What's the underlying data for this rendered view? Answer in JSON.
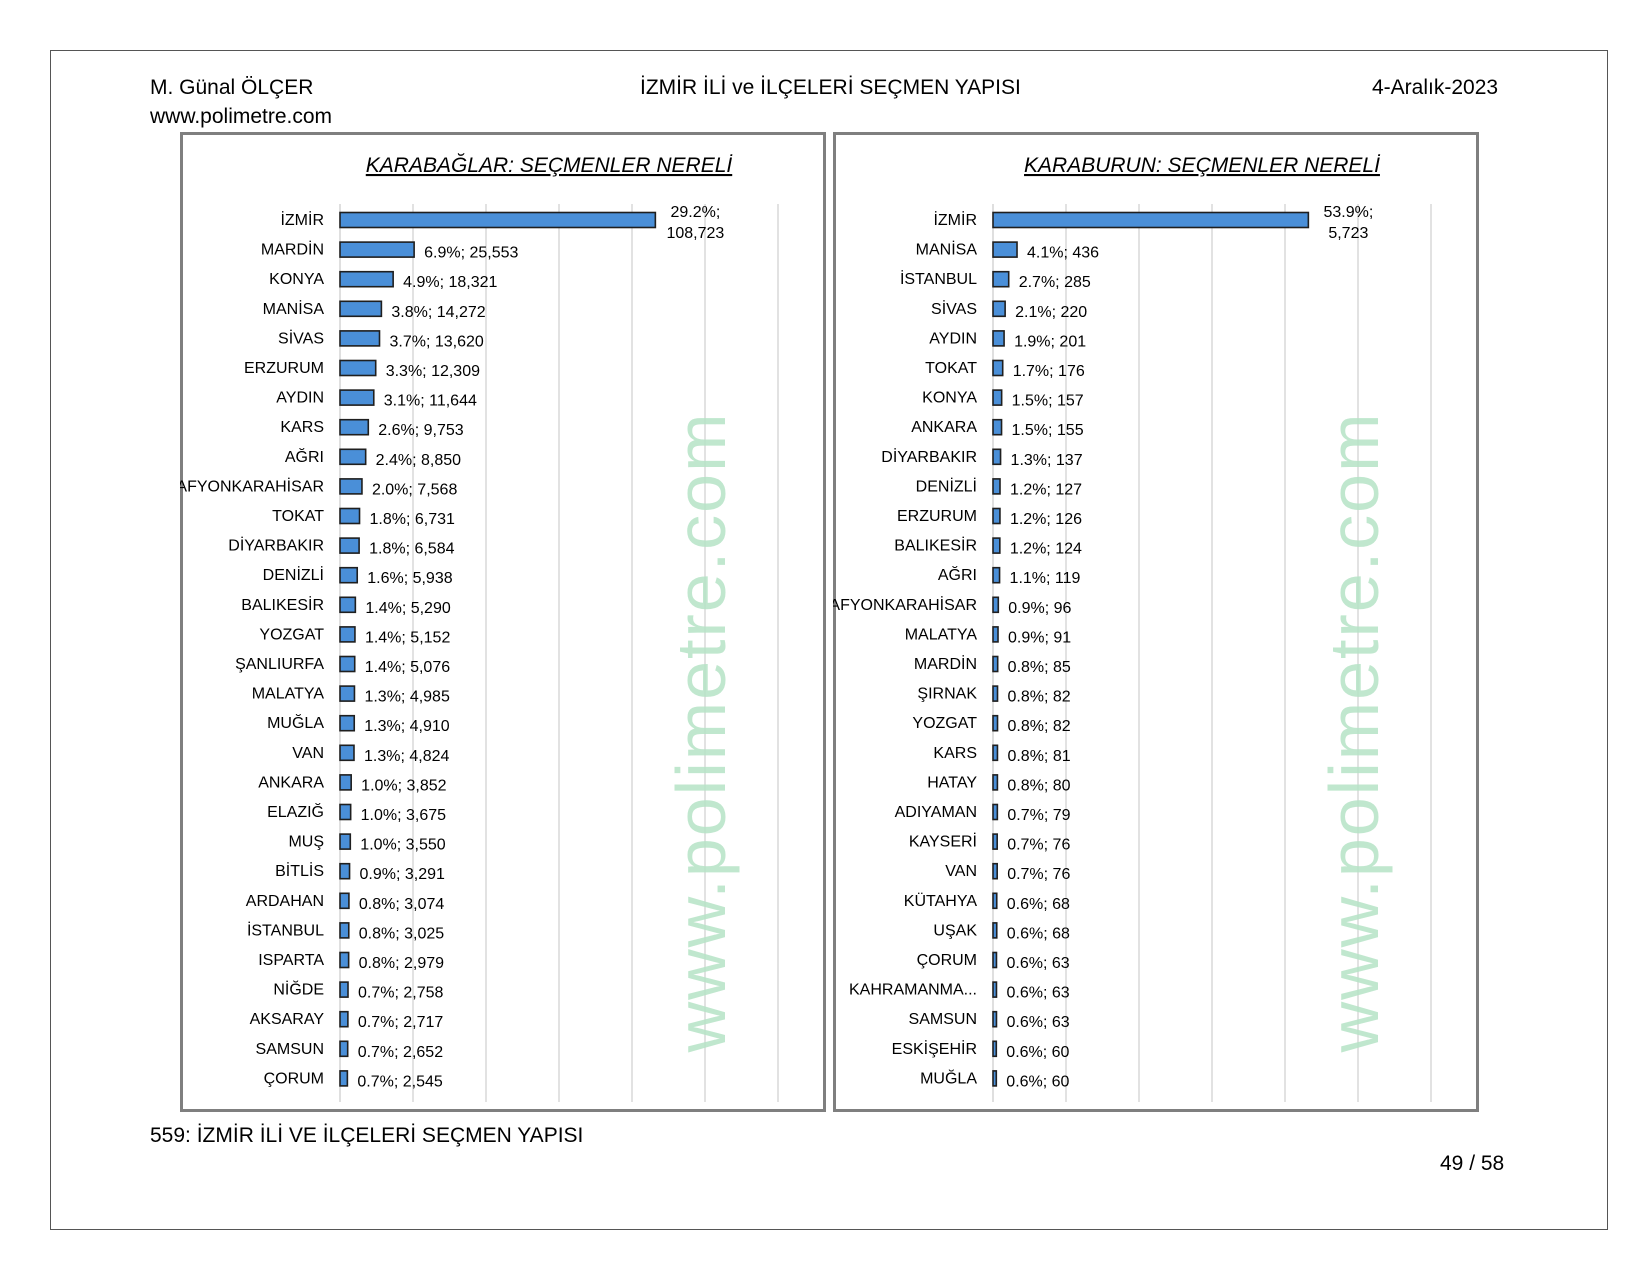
{
  "header": {
    "author": "M. Günal ÖLÇER",
    "website": "www.polimetre.com",
    "title": "İZMİR İLİ ve İLÇELERİ SEÇMEN YAPISI",
    "date": "4-Aralık-2023"
  },
  "footer": {
    "caption": "559: İZMİR İLİ VE İLÇELERİ SEÇMEN YAPISI",
    "page": "49 / 58"
  },
  "watermark": "www.polimetre.com",
  "colors": {
    "bar": "#4a8fd8",
    "bar_border": "#1f1f1f",
    "grid": "#d9d9d9",
    "watermark": "#b5e3c6"
  },
  "chart_data": [
    {
      "type": "bar",
      "orientation": "horizontal",
      "title": "KARABAĞLAR: SEÇMENLER NERELİ",
      "grid": true,
      "categories": [
        "İZMİR",
        "MARDİN",
        "KONYA",
        "MANİSA",
        "SİVAS",
        "ERZURUM",
        "AYDIN",
        "KARS",
        "AĞRI",
        "AFYONKARAHİSAR",
        "TOKAT",
        "DİYARBAKIR",
        "DENİZLİ",
        "BALIKESİR",
        "YOZGAT",
        "ŞANLIURFA",
        "MALATYA",
        "MUĞLA",
        "VAN",
        "ANKARA",
        "ELAZIĞ",
        "MUŞ",
        "BİTLİS",
        "ARDAHAN",
        "İSTANBUL",
        "ISPARTA",
        "NİĞDE",
        "AKSARAY",
        "SAMSUN",
        "ÇORUM"
      ],
      "percent_labels": [
        "29.2%",
        "6.9%",
        "4.9%",
        "3.8%",
        "3.7%",
        "3.3%",
        "3.1%",
        "2.6%",
        "2.4%",
        "2.0%",
        "1.8%",
        "1.8%",
        "1.6%",
        "1.4%",
        "1.4%",
        "1.4%",
        "1.3%",
        "1.3%",
        "1.3%",
        "1.0%",
        "1.0%",
        "1.0%",
        "0.9%",
        "0.8%",
        "0.8%",
        "0.8%",
        "0.7%",
        "0.7%",
        "0.7%",
        "0.7%"
      ],
      "count_labels": [
        "108,723",
        "25,553",
        "18,321",
        "14,272",
        "13,620",
        "12,309",
        "11,644",
        "9,753",
        "8,850",
        "7,568",
        "6,731",
        "6,584",
        "5,938",
        "5,290",
        "5,152",
        "5,076",
        "4,985",
        "4,910",
        "4,824",
        "3,852",
        "3,675",
        "3,550",
        "3,291",
        "3,074",
        "3,025",
        "2,979",
        "2,758",
        "2,717",
        "2,652",
        "2,545"
      ],
      "values": [
        108723,
        25553,
        18321,
        14272,
        13620,
        12309,
        11644,
        9753,
        8850,
        7568,
        6731,
        6584,
        5938,
        5290,
        5152,
        5076,
        4985,
        4910,
        4824,
        3852,
        3675,
        3550,
        3291,
        3074,
        3025,
        2979,
        2758,
        2717,
        2652,
        2545
      ]
    },
    {
      "type": "bar",
      "orientation": "horizontal",
      "title": "KARABURUN: SEÇMENLER NERELİ",
      "grid": true,
      "categories": [
        "İZMİR",
        "MANİSA",
        "İSTANBUL",
        "SİVAS",
        "AYDIN",
        "TOKAT",
        "KONYA",
        "ANKARA",
        "DİYARBAKIR",
        "DENİZLİ",
        "ERZURUM",
        "BALIKESİR",
        "AĞRI",
        "AFYONKARAHİSAR",
        "MALATYA",
        "MARDİN",
        "ŞIRNAK",
        "YOZGAT",
        "KARS",
        "HATAY",
        "ADIYAMAN",
        "KAYSERİ",
        "VAN",
        "KÜTAHYA",
        "UŞAK",
        "ÇORUM",
        "KAHRAMANMA...",
        "SAMSUN",
        "ESKİŞEHİR",
        "MUĞLA"
      ],
      "percent_labels": [
        "53.9%",
        "4.1%",
        "2.7%",
        "2.1%",
        "1.9%",
        "1.7%",
        "1.5%",
        "1.5%",
        "1.3%",
        "1.2%",
        "1.2%",
        "1.2%",
        "1.1%",
        "0.9%",
        "0.9%",
        "0.8%",
        "0.8%",
        "0.8%",
        "0.8%",
        "0.8%",
        "0.7%",
        "0.7%",
        "0.7%",
        "0.6%",
        "0.6%",
        "0.6%",
        "0.6%",
        "0.6%",
        "0.6%",
        "0.6%"
      ],
      "count_labels": [
        "5,723",
        "436",
        "285",
        "220",
        "201",
        "176",
        "157",
        "155",
        "137",
        "127",
        "126",
        "124",
        "119",
        "96",
        "91",
        "85",
        "82",
        "82",
        "81",
        "80",
        "79",
        "76",
        "76",
        "68",
        "68",
        "63",
        "63",
        "63",
        "60",
        "60"
      ],
      "values": [
        5723,
        436,
        285,
        220,
        201,
        176,
        157,
        155,
        137,
        127,
        126,
        124,
        119,
        96,
        91,
        85,
        82,
        82,
        81,
        80,
        79,
        76,
        76,
        68,
        68,
        63,
        63,
        63,
        60,
        60
      ]
    }
  ]
}
